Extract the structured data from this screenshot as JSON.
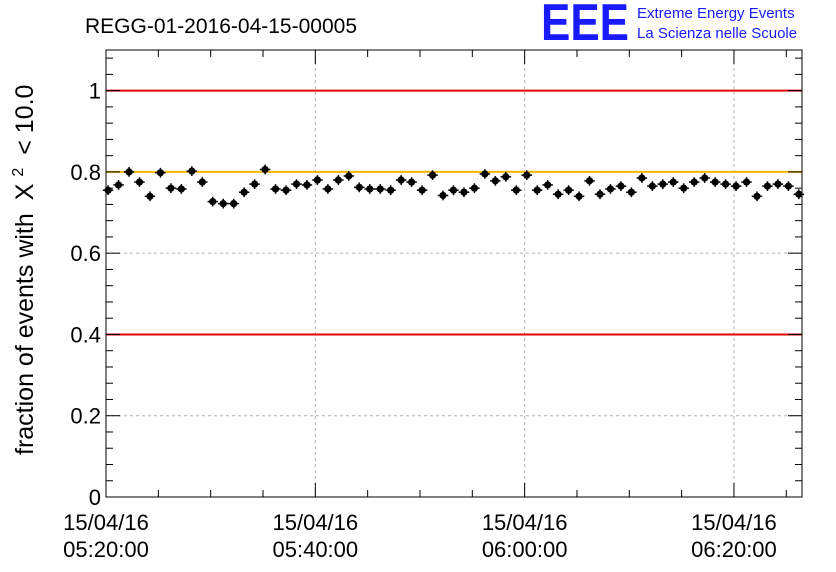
{
  "header": {
    "title": "REGG-01-2016-04-15-00005"
  },
  "logo": {
    "mark": "EEE",
    "line1": "Extreme Energy Events",
    "line2": "La Scienza nelle Scuole",
    "color": "#1a1aff"
  },
  "chart_data": {
    "type": "scatter",
    "title": "REGG-01-2016-04-15-00005",
    "xlabel": "",
    "ylabel": "fraction of events with",
    "ylabel_symbol": "X",
    "ylabel_exp": "2",
    "ylabel_cond": "< 10.0",
    "ylim": [
      0,
      1.1
    ],
    "xlim_minutes": [
      0,
      66.5
    ],
    "x_tick_minutes": [
      0,
      20,
      40,
      60
    ],
    "x_minor_step_minutes": 5,
    "x_ticks": [
      {
        "date": "15/04/16",
        "time": "05:20:00"
      },
      {
        "date": "15/04/16",
        "time": "05:40:00"
      },
      {
        "date": "15/04/16",
        "time": "06:00:00"
      },
      {
        "date": "15/04/16",
        "time": "06:20:00"
      }
    ],
    "y_ticks": [
      {
        "value": 0,
        "label": "0"
      },
      {
        "value": 0.2,
        "label": "0.2"
      },
      {
        "value": 0.4,
        "label": "0.4"
      },
      {
        "value": 0.6,
        "label": "0.6"
      },
      {
        "value": 0.8,
        "label": "0.8"
      },
      {
        "value": 1.0,
        "label": "1"
      }
    ],
    "grid": true,
    "reference_lines": [
      {
        "value": 1.0,
        "color": "#e00000"
      },
      {
        "value": 0.8,
        "color": "#f5b800"
      },
      {
        "value": 0.4,
        "color": "#e00000"
      }
    ],
    "series": [
      {
        "name": "fraction",
        "color": "#000000",
        "x_start_minutes": 0.2,
        "x_step_minutes": 1.0,
        "error": 0.012,
        "values": [
          0.755,
          0.768,
          0.8,
          0.775,
          0.74,
          0.798,
          0.76,
          0.758,
          0.802,
          0.775,
          0.727,
          0.722,
          0.722,
          0.75,
          0.77,
          0.806,
          0.758,
          0.755,
          0.77,
          0.768,
          0.78,
          0.758,
          0.78,
          0.79,
          0.762,
          0.758,
          0.758,
          0.755,
          0.78,
          0.775,
          0.755,
          0.792,
          0.742,
          0.755,
          0.75,
          0.76,
          0.795,
          0.778,
          0.788,
          0.755,
          0.792,
          0.755,
          0.768,
          0.745,
          0.755,
          0.74,
          0.778,
          0.745,
          0.758,
          0.765,
          0.75,
          0.785,
          0.765,
          0.77,
          0.775,
          0.76,
          0.775,
          0.785,
          0.775,
          0.77,
          0.765,
          0.775,
          0.74,
          0.765,
          0.77,
          0.765,
          0.745
        ]
      }
    ]
  }
}
